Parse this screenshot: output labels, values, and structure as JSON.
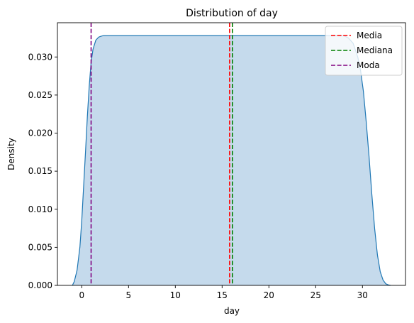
{
  "chart_data": {
    "type": "area",
    "title": "Distribution of day",
    "xlabel": "day",
    "ylabel": "Density",
    "xlim": [
      -2.6,
      34.6
    ],
    "ylim": [
      0,
      0.0345
    ],
    "xticks": [
      0,
      5,
      10,
      15,
      20,
      25,
      30
    ],
    "yticks": [
      0.0,
      0.005,
      0.01,
      0.015,
      0.02,
      0.025,
      0.03
    ],
    "ytick_labels": [
      "0.000",
      "0.005",
      "0.010",
      "0.015",
      "0.020",
      "0.025",
      "0.030"
    ],
    "grid": false,
    "legend_position": "top-right",
    "density_curve": {
      "x": [
        -1.0,
        -0.8,
        -0.5,
        -0.2,
        0.0,
        0.2,
        0.4,
        0.6,
        0.8,
        1.0,
        1.2,
        1.5,
        1.8,
        2.0,
        2.3,
        2.6,
        3.0,
        5,
        10,
        15,
        20,
        25,
        28.0,
        28.5,
        29.0,
        29.5,
        29.8,
        30.1,
        30.4,
        30.7,
        31.0,
        31.3,
        31.6,
        31.9,
        32.2,
        32.5,
        32.8,
        33.0
      ],
      "y": [
        0.0,
        0.0005,
        0.002,
        0.005,
        0.0085,
        0.013,
        0.0175,
        0.0222,
        0.0262,
        0.0293,
        0.031,
        0.0322,
        0.0326,
        0.0327,
        0.0328,
        0.0328,
        0.0328,
        0.0328,
        0.0328,
        0.0328,
        0.0328,
        0.0328,
        0.0328,
        0.0325,
        0.0318,
        0.03,
        0.0282,
        0.0255,
        0.0215,
        0.017,
        0.012,
        0.0075,
        0.004,
        0.0018,
        0.0007,
        0.0002,
        5e-05,
        0.0
      ],
      "line_color": "#1f77b4",
      "fill_color": "#c5daec"
    },
    "reference_lines": [
      {
        "name": "Media",
        "x": 15.8,
        "color": "#ff0000"
      },
      {
        "name": "Mediana",
        "x": 16.1,
        "color": "#008000"
      },
      {
        "name": "Moda",
        "x": 1.0,
        "color": "#800080"
      }
    ]
  }
}
